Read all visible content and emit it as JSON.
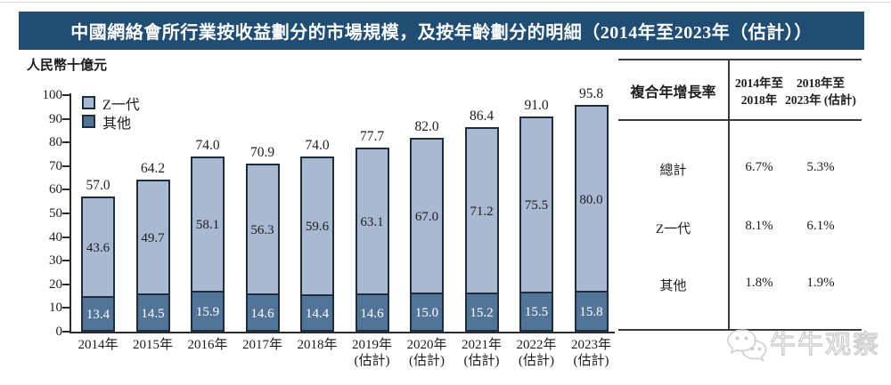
{
  "title": "中國網絡會所行業按收益劃分的市場規模，及按年齡劃分的明細（2014年至2023年（估計））",
  "y_axis_unit": "人民幣十億元",
  "colors": {
    "banner_bg": "#204d73",
    "z_generation": "#aab9d2",
    "other": "#527499",
    "bar_border": "#1f2e3e"
  },
  "legend": [
    {
      "label": "Z一代",
      "color": "#aab9d2"
    },
    {
      "label": "其他",
      "color": "#527499"
    }
  ],
  "chart_data": {
    "type": "bar",
    "stacked": true,
    "title": "中國網絡會所行業按收益劃分的市場規模，及按年齡劃分的明細（2014年至2023年（估計））",
    "ylabel": "人民幣十億元",
    "ylim": [
      0,
      100
    ],
    "yticks": [
      0,
      10,
      20,
      30,
      40,
      50,
      60,
      70,
      80,
      90,
      100
    ],
    "grid": false,
    "legend_position": "top-left",
    "categories": [
      {
        "label": "2014年"
      },
      {
        "label": "2015年"
      },
      {
        "label": "2016年"
      },
      {
        "label": "2017年"
      },
      {
        "label": "2018年"
      },
      {
        "label": "2019年",
        "sub": "(估計)"
      },
      {
        "label": "2020年",
        "sub": "(估計)"
      },
      {
        "label": "2021年",
        "sub": "(估計)"
      },
      {
        "label": "2022年",
        "sub": "(估計)"
      },
      {
        "label": "2023年",
        "sub": "(估計)"
      }
    ],
    "series": [
      {
        "name": "其他",
        "color": "#527499",
        "values": [
          13.4,
          14.5,
          15.9,
          14.6,
          14.4,
          14.6,
          15.0,
          15.2,
          15.5,
          15.8
        ]
      },
      {
        "name": "Z一代",
        "color": "#aab9d2",
        "values": [
          43.6,
          49.7,
          58.1,
          56.3,
          59.6,
          63.1,
          67.0,
          71.2,
          75.5,
          80.0
        ]
      }
    ],
    "totals": [
      57.0,
      64.2,
      74.0,
      70.9,
      74.0,
      77.7,
      82.0,
      86.4,
      91.0,
      95.8
    ]
  },
  "table": {
    "header": "複合年增長率",
    "col_headers": [
      {
        "line1": "2014年至",
        "line2": "2018年"
      },
      {
        "line1": "2018年至",
        "line2": "2023年 (估計)"
      }
    ],
    "rows": [
      {
        "label": "總計",
        "values": [
          "6.7%",
          "5.3%"
        ]
      },
      {
        "label": "Z一代",
        "values": [
          "8.1%",
          "6.1%"
        ]
      },
      {
        "label": "其他",
        "values": [
          "1.8%",
          "1.9%"
        ]
      }
    ]
  },
  "watermark": {
    "text": "牛牛观察",
    "icon": "wechat-chat-bubbles-icon"
  }
}
